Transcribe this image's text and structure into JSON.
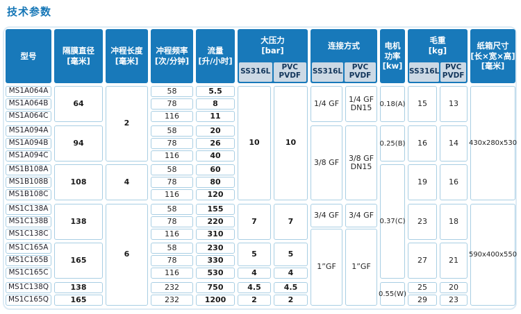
{
  "page": {
    "title": "技术参数"
  },
  "table": {
    "header": {
      "simple": [
        {
          "col": "model",
          "label": "型号"
        },
        {
          "col": "dia",
          "label": "隔膜直径\n[毫米]"
        },
        {
          "col": "stroke",
          "label": "冲程长度\n[毫米]"
        },
        {
          "col": "freq",
          "label": "冲程频率\n[次/分钟]"
        },
        {
          "col": "flow",
          "label": "流量\n[升/小时]"
        },
        {
          "col": "motor",
          "label": "电机\n功率\n[kw]"
        },
        {
          "col": "carton",
          "label": "纸箱尺寸\n[长×宽×高]\n[毫米]"
        }
      ],
      "grouped": [
        {
          "cols": [
            "pss",
            "ppvc"
          ],
          "label": "大压力\n[bar]",
          "subs": [
            {
              "col": "pss",
              "label": "SS316L"
            },
            {
              "col": "ppvc",
              "label": "PVC\nPVDF"
            }
          ]
        },
        {
          "cols": [
            "css",
            "cpvc"
          ],
          "label": "连接方式",
          "subs": [
            {
              "col": "css",
              "label": "SS316L"
            },
            {
              "col": "cpvc",
              "label": "PVC\nPVDF"
            }
          ]
        },
        {
          "cols": [
            "wss",
            "wpvc"
          ],
          "label": "毛重\n[kg]",
          "subs": [
            {
              "col": "wss",
              "label": "SS316L"
            },
            {
              "col": "wpvc",
              "label": "PVC\nPVDF"
            }
          ]
        }
      ]
    },
    "body": [
      {
        "col": "model",
        "cells": [
          {
            "r": 1,
            "s": 1,
            "t": "MS1A064A"
          },
          {
            "r": 2,
            "s": 1,
            "t": "MS1A064B"
          },
          {
            "r": 3,
            "s": 1,
            "t": "MS1A064C"
          },
          {
            "r": 4,
            "s": 1,
            "t": "MS1A094A"
          },
          {
            "r": 5,
            "s": 1,
            "t": "MS1A094B"
          },
          {
            "r": 6,
            "s": 1,
            "t": "MS1A094C"
          },
          {
            "r": 7,
            "s": 1,
            "t": "MS1B108A"
          },
          {
            "r": 8,
            "s": 1,
            "t": "MS1B108B"
          },
          {
            "r": 9,
            "s": 1,
            "t": "MS1B108C"
          },
          {
            "r": 10,
            "s": 1,
            "t": "MS1C138A"
          },
          {
            "r": 11,
            "s": 1,
            "t": "MS1C138B"
          },
          {
            "r": 12,
            "s": 1,
            "t": "MS1C138C"
          },
          {
            "r": 13,
            "s": 1,
            "t": "MS1C165A"
          },
          {
            "r": 14,
            "s": 1,
            "t": "MS1C165B"
          },
          {
            "r": 15,
            "s": 1,
            "t": "MS1C165C"
          },
          {
            "r": 16,
            "s": 1,
            "t": "MS1C138Q"
          },
          {
            "r": 17,
            "s": 1,
            "t": "MS1C165Q"
          }
        ]
      },
      {
        "col": "dia",
        "cells": [
          {
            "r": 1,
            "s": 3,
            "t": "64"
          },
          {
            "r": 4,
            "s": 3,
            "t": "94"
          },
          {
            "r": 7,
            "s": 3,
            "t": "108"
          },
          {
            "r": 10,
            "s": 3,
            "t": "138"
          },
          {
            "r": 13,
            "s": 3,
            "t": "165"
          },
          {
            "r": 16,
            "s": 1,
            "t": "138"
          },
          {
            "r": 17,
            "s": 1,
            "t": "165"
          }
        ]
      },
      {
        "col": "stroke",
        "cells": [
          {
            "r": 1,
            "s": 6,
            "t": "2"
          },
          {
            "r": 7,
            "s": 3,
            "t": "4"
          },
          {
            "r": 10,
            "s": 8,
            "t": "6"
          }
        ]
      },
      {
        "col": "freq",
        "cells": [
          {
            "r": 1,
            "s": 1,
            "t": "58"
          },
          {
            "r": 2,
            "s": 1,
            "t": "78"
          },
          {
            "r": 3,
            "s": 1,
            "t": "116"
          },
          {
            "r": 4,
            "s": 1,
            "t": "58"
          },
          {
            "r": 5,
            "s": 1,
            "t": "78"
          },
          {
            "r": 6,
            "s": 1,
            "t": "116"
          },
          {
            "r": 7,
            "s": 1,
            "t": "58"
          },
          {
            "r": 8,
            "s": 1,
            "t": "78"
          },
          {
            "r": 9,
            "s": 1,
            "t": "116"
          },
          {
            "r": 10,
            "s": 1,
            "t": "58"
          },
          {
            "r": 11,
            "s": 1,
            "t": "78"
          },
          {
            "r": 12,
            "s": 1,
            "t": "116"
          },
          {
            "r": 13,
            "s": 1,
            "t": "58"
          },
          {
            "r": 14,
            "s": 1,
            "t": "78"
          },
          {
            "r": 15,
            "s": 1,
            "t": "116"
          },
          {
            "r": 16,
            "s": 1,
            "t": "232"
          },
          {
            "r": 17,
            "s": 1,
            "t": "232"
          }
        ]
      },
      {
        "col": "flow",
        "cells": [
          {
            "r": 1,
            "s": 1,
            "t": "5.5"
          },
          {
            "r": 2,
            "s": 1,
            "t": "8"
          },
          {
            "r": 3,
            "s": 1,
            "t": "11"
          },
          {
            "r": 4,
            "s": 1,
            "t": "20"
          },
          {
            "r": 5,
            "s": 1,
            "t": "26"
          },
          {
            "r": 6,
            "s": 1,
            "t": "40"
          },
          {
            "r": 7,
            "s": 1,
            "t": "60"
          },
          {
            "r": 8,
            "s": 1,
            "t": "80"
          },
          {
            "r": 9,
            "s": 1,
            "t": "120"
          },
          {
            "r": 10,
            "s": 1,
            "t": "155"
          },
          {
            "r": 11,
            "s": 1,
            "t": "220"
          },
          {
            "r": 12,
            "s": 1,
            "t": "310"
          },
          {
            "r": 13,
            "s": 1,
            "t": "230"
          },
          {
            "r": 14,
            "s": 1,
            "t": "330"
          },
          {
            "r": 15,
            "s": 1,
            "t": "530"
          },
          {
            "r": 16,
            "s": 1,
            "t": "750"
          },
          {
            "r": 17,
            "s": 1,
            "t": "1200"
          }
        ]
      },
      {
        "col": "pss",
        "cells": [
          {
            "r": 1,
            "s": 9,
            "t": "10"
          },
          {
            "r": 10,
            "s": 3,
            "t": "7"
          },
          {
            "r": 13,
            "s": 2,
            "t": "5"
          },
          {
            "r": 15,
            "s": 1,
            "t": "4"
          },
          {
            "r": 16,
            "s": 1,
            "t": "4.5"
          },
          {
            "r": 17,
            "s": 1,
            "t": "2"
          }
        ]
      },
      {
        "col": "ppvc",
        "cells": [
          {
            "r": 1,
            "s": 9,
            "t": "10"
          },
          {
            "r": 10,
            "s": 3,
            "t": "7"
          },
          {
            "r": 13,
            "s": 2,
            "t": "5"
          },
          {
            "r": 15,
            "s": 1,
            "t": "4"
          },
          {
            "r": 16,
            "s": 1,
            "t": "4.5"
          },
          {
            "r": 17,
            "s": 1,
            "t": "2"
          }
        ]
      },
      {
        "col": "css",
        "cells": [
          {
            "r": 1,
            "s": 3,
            "t": "1/4 GF"
          },
          {
            "r": 4,
            "s": 6,
            "t": "3/8 GF"
          },
          {
            "r": 10,
            "s": 2,
            "t": "3/4 GF"
          },
          {
            "r": 12,
            "s": 6,
            "t": "1”GF"
          }
        ]
      },
      {
        "col": "cpvc",
        "cells": [
          {
            "r": 1,
            "s": 3,
            "t": "1/4 GF\nDN15"
          },
          {
            "r": 4,
            "s": 6,
            "t": "3/8 GF\nDN15"
          },
          {
            "r": 10,
            "s": 2,
            "t": "3/4 GF"
          },
          {
            "r": 12,
            "s": 6,
            "t": "1”GF"
          }
        ]
      },
      {
        "col": "motor",
        "cells": [
          {
            "r": 1,
            "s": 3,
            "t": "0.18(A)"
          },
          {
            "r": 4,
            "s": 3,
            "t": "0.25(B)"
          },
          {
            "r": 7,
            "s": 9,
            "t": "0.37(C)"
          },
          {
            "r": 16,
            "s": 2,
            "t": "0.55(W)"
          }
        ]
      },
      {
        "col": "wss",
        "cells": [
          {
            "r": 1,
            "s": 3,
            "t": "15"
          },
          {
            "r": 4,
            "s": 3,
            "t": "16"
          },
          {
            "r": 7,
            "s": 3,
            "t": "19"
          },
          {
            "r": 10,
            "s": 3,
            "t": "23"
          },
          {
            "r": 13,
            "s": 3,
            "t": "27"
          },
          {
            "r": 16,
            "s": 1,
            "t": "25"
          },
          {
            "r": 17,
            "s": 1,
            "t": "29"
          }
        ]
      },
      {
        "col": "wpvc",
        "cells": [
          {
            "r": 1,
            "s": 3,
            "t": "13"
          },
          {
            "r": 4,
            "s": 3,
            "t": "14"
          },
          {
            "r": 7,
            "s": 3,
            "t": "16"
          },
          {
            "r": 10,
            "s": 3,
            "t": "18"
          },
          {
            "r": 13,
            "s": 3,
            "t": "21"
          },
          {
            "r": 16,
            "s": 1,
            "t": "20"
          },
          {
            "r": 17,
            "s": 1,
            "t": "23"
          }
        ]
      },
      {
        "col": "carton",
        "cells": [
          {
            "r": 1,
            "s": 9,
            "t": "430x280x530"
          },
          {
            "r": 10,
            "s": 8,
            "t": "590x400x550"
          }
        ]
      }
    ],
    "colors": {
      "header_blue": "#1879ba",
      "subheader_bg": "#ccd9e5",
      "subheader_text": "#14375c",
      "cell_border": "#a8cee3",
      "title_text": "#1576b6"
    }
  }
}
